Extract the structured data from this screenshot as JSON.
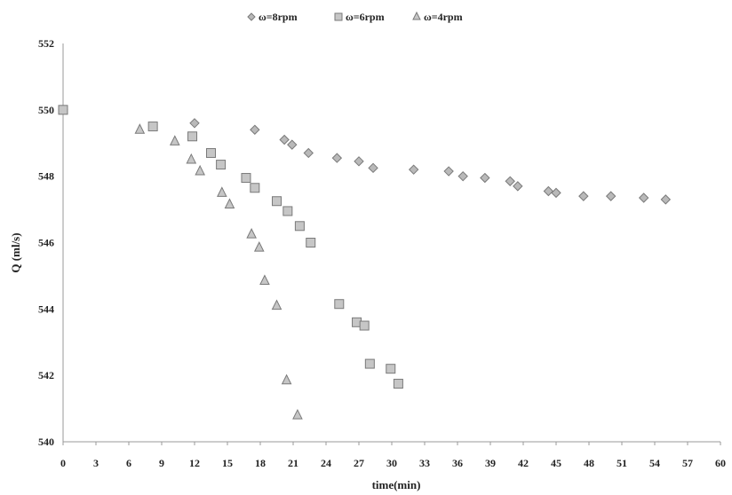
{
  "chart_data": {
    "type": "scatter",
    "title": "",
    "xlabel": "time(min)",
    "ylabel": "Q (ml/s)",
    "xlim": [
      0,
      60
    ],
    "ylim": [
      540,
      552
    ],
    "xticks": [
      0,
      3,
      6,
      9,
      12,
      15,
      18,
      21,
      24,
      27,
      30,
      33,
      36,
      39,
      42,
      45,
      48,
      51,
      54,
      57,
      60
    ],
    "yticks": [
      540,
      542,
      544,
      546,
      548,
      550,
      552
    ],
    "grid": false,
    "legend_position": "top",
    "series": [
      {
        "name": "ω=8rpm",
        "marker": "diamond",
        "color": "#b9b9b9",
        "points": [
          [
            0,
            550.0
          ],
          [
            12,
            549.6
          ],
          [
            17.5,
            549.4
          ],
          [
            20.2,
            549.1
          ],
          [
            20.9,
            548.95
          ],
          [
            22.4,
            548.7
          ],
          [
            25,
            548.55
          ],
          [
            27,
            548.45
          ],
          [
            28.3,
            548.25
          ],
          [
            32,
            548.2
          ],
          [
            35.2,
            548.15
          ],
          [
            36.5,
            548.0
          ],
          [
            38.5,
            547.95
          ],
          [
            40.8,
            547.85
          ],
          [
            41.5,
            547.7
          ],
          [
            44.3,
            547.55
          ],
          [
            45,
            547.5
          ],
          [
            47.5,
            547.4
          ],
          [
            50,
            547.4
          ],
          [
            53,
            547.35
          ],
          [
            55,
            547.3
          ]
        ]
      },
      {
        "name": "ω=6rpm",
        "marker": "square",
        "color": "#c6c6c6",
        "points": [
          [
            0,
            550.0
          ],
          [
            8.2,
            549.5
          ],
          [
            11.8,
            549.2
          ],
          [
            13.5,
            548.7
          ],
          [
            14.4,
            548.35
          ],
          [
            16.7,
            547.95
          ],
          [
            17.5,
            547.65
          ],
          [
            19.5,
            547.25
          ],
          [
            20.5,
            546.95
          ],
          [
            21.6,
            546.5
          ],
          [
            22.6,
            546.0
          ],
          [
            25.2,
            544.15
          ],
          [
            26.8,
            543.6
          ],
          [
            27.5,
            543.5
          ],
          [
            28,
            542.35
          ],
          [
            29.9,
            542.2
          ],
          [
            30.6,
            541.75
          ]
        ]
      },
      {
        "name": "ω=4rpm",
        "marker": "triangle",
        "color": "#c6c6c6",
        "points": [
          [
            7,
            549.4
          ],
          [
            10.2,
            549.05
          ],
          [
            11.7,
            548.5
          ],
          [
            12.5,
            548.15
          ],
          [
            14.5,
            547.5
          ],
          [
            15.2,
            547.15
          ],
          [
            17.2,
            546.25
          ],
          [
            17.9,
            545.85
          ],
          [
            18.4,
            544.85
          ],
          [
            19.5,
            544.1
          ],
          [
            20.4,
            541.85
          ],
          [
            21.4,
            540.8
          ]
        ]
      }
    ]
  }
}
